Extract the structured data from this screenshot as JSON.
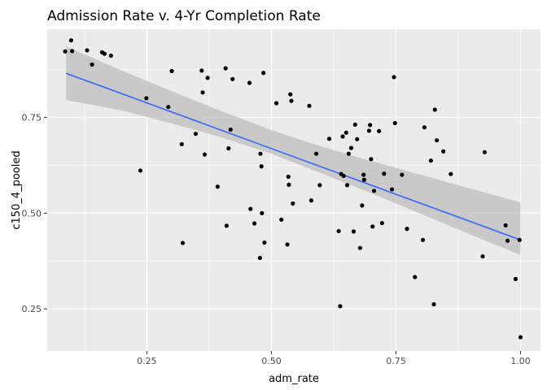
{
  "chart_data": {
    "type": "scatter",
    "title": "Admission Rate v. 4-Yr Completion Rate",
    "xlabel": "adm_rate",
    "ylabel": "c150_4_pooled",
    "xlim": [
      0.05,
      1.04
    ],
    "ylim": [
      0.14,
      0.98
    ],
    "x_ticks": [
      0.25,
      0.5,
      0.75,
      1.0
    ],
    "x_tick_labels": [
      "0.25",
      "0.50",
      "0.75",
      "1.00"
    ],
    "y_ticks": [
      0.25,
      0.5,
      0.75
    ],
    "y_tick_labels": [
      "0.25",
      "0.50",
      "0.75"
    ],
    "grid": true,
    "colors": {
      "panel_background": "#ebebeb",
      "grid": "#ffffff",
      "points": "#000000",
      "trend_line": "#3366ff",
      "confidence_band": "#bdbdbd"
    },
    "trend_line": {
      "method": "linear",
      "x": [
        0.088,
        1.0
      ],
      "y": [
        0.865,
        0.43
      ]
    },
    "confidence_band": {
      "x": [
        0.088,
        0.2,
        0.3,
        0.4,
        0.5,
        0.6,
        0.7,
        0.8,
        0.9,
        1.0
      ],
      "lower": [
        0.795,
        0.768,
        0.734,
        0.698,
        0.655,
        0.604,
        0.552,
        0.498,
        0.444,
        0.39
      ],
      "upper": [
        0.935,
        0.872,
        0.818,
        0.766,
        0.717,
        0.674,
        0.636,
        0.6,
        0.564,
        0.528
      ]
    },
    "points": [
      [
        0.086,
        0.922
      ],
      [
        0.098,
        0.951
      ],
      [
        0.1,
        0.923
      ],
      [
        0.13,
        0.925
      ],
      [
        0.14,
        0.888
      ],
      [
        0.16,
        0.92
      ],
      [
        0.165,
        0.916
      ],
      [
        0.178,
        0.911
      ],
      [
        0.237,
        0.611
      ],
      [
        0.249,
        0.8
      ],
      [
        0.293,
        0.777
      ],
      [
        0.3,
        0.871
      ],
      [
        0.32,
        0.68
      ],
      [
        0.322,
        0.422
      ],
      [
        0.348,
        0.707
      ],
      [
        0.36,
        0.872
      ],
      [
        0.362,
        0.815
      ],
      [
        0.366,
        0.653
      ],
      [
        0.372,
        0.853
      ],
      [
        0.392,
        0.569
      ],
      [
        0.408,
        0.878
      ],
      [
        0.41,
        0.467
      ],
      [
        0.414,
        0.669
      ],
      [
        0.418,
        0.718
      ],
      [
        0.422,
        0.85
      ],
      [
        0.456,
        0.84
      ],
      [
        0.458,
        0.511
      ],
      [
        0.466,
        0.473
      ],
      [
        0.477,
        0.383
      ],
      [
        0.478,
        0.655
      ],
      [
        0.48,
        0.622
      ],
      [
        0.481,
        0.5
      ],
      [
        0.484,
        0.866
      ],
      [
        0.486,
        0.423
      ],
      [
        0.51,
        0.787
      ],
      [
        0.52,
        0.483
      ],
      [
        0.532,
        0.418
      ],
      [
        0.534,
        0.595
      ],
      [
        0.535,
        0.574
      ],
      [
        0.538,
        0.81
      ],
      [
        0.54,
        0.793
      ],
      [
        0.543,
        0.525
      ],
      [
        0.576,
        0.78
      ],
      [
        0.58,
        0.533
      ],
      [
        0.59,
        0.655
      ],
      [
        0.597,
        0.573
      ],
      [
        0.616,
        0.694
      ],
      [
        0.635,
        0.453
      ],
      [
        0.638,
        0.257
      ],
      [
        0.64,
        0.602
      ],
      [
        0.643,
        0.7
      ],
      [
        0.645,
        0.597
      ],
      [
        0.65,
        0.71
      ],
      [
        0.652,
        0.573
      ],
      [
        0.655,
        0.655
      ],
      [
        0.66,
        0.67
      ],
      [
        0.665,
        0.452
      ],
      [
        0.668,
        0.731
      ],
      [
        0.672,
        0.693
      ],
      [
        0.678,
        0.409
      ],
      [
        0.682,
        0.52
      ],
      [
        0.685,
        0.6
      ],
      [
        0.686,
        0.587
      ],
      [
        0.696,
        0.715
      ],
      [
        0.698,
        0.73
      ],
      [
        0.7,
        0.641
      ],
      [
        0.703,
        0.465
      ],
      [
        0.706,
        0.558
      ],
      [
        0.716,
        0.714
      ],
      [
        0.722,
        0.474
      ],
      [
        0.726,
        0.603
      ],
      [
        0.742,
        0.562
      ],
      [
        0.746,
        0.855
      ],
      [
        0.748,
        0.735
      ],
      [
        0.762,
        0.6
      ],
      [
        0.772,
        0.459
      ],
      [
        0.788,
        0.333
      ],
      [
        0.804,
        0.43
      ],
      [
        0.807,
        0.724
      ],
      [
        0.82,
        0.637
      ],
      [
        0.826,
        0.262
      ],
      [
        0.828,
        0.77
      ],
      [
        0.832,
        0.69
      ],
      [
        0.845,
        0.661
      ],
      [
        0.86,
        0.602
      ],
      [
        0.924,
        0.387
      ],
      [
        0.928,
        0.659
      ],
      [
        0.97,
        0.468
      ],
      [
        0.974,
        0.428
      ],
      [
        0.99,
        0.328
      ],
      [
        0.998,
        0.43
      ],
      [
        1.0,
        0.176
      ]
    ]
  }
}
